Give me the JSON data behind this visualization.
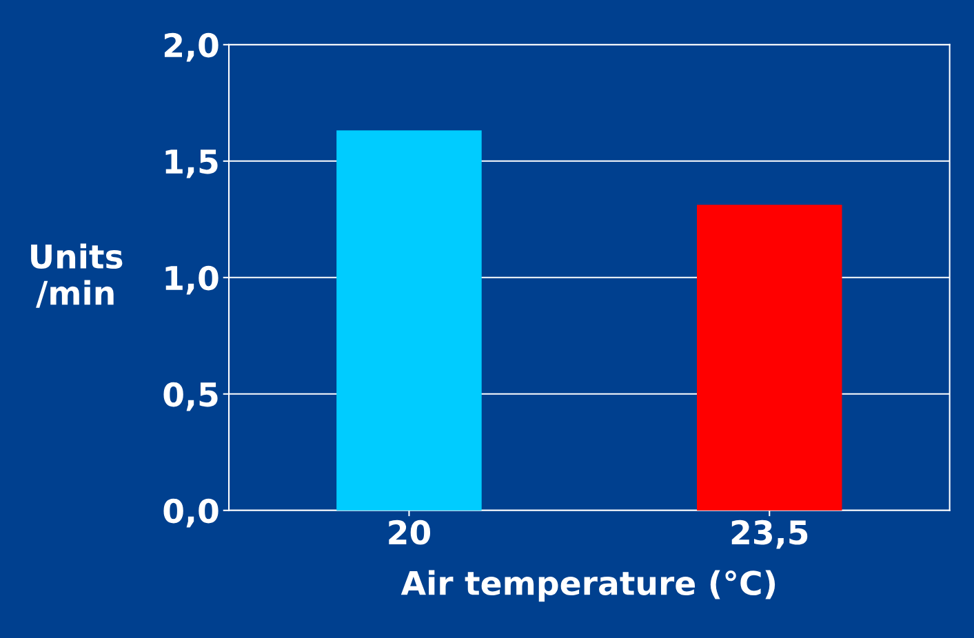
{
  "chart_data": {
    "type": "bar",
    "categories": [
      "20",
      "23,5"
    ],
    "values": [
      1.63,
      1.31
    ],
    "colors": [
      "#00ccff",
      "#ff0000"
    ],
    "xlabel": "Air temperature (°C)",
    "ylabel": "Units\n/min",
    "ylim": [
      0,
      2
    ],
    "yticks": [
      {
        "value": 0,
        "label": "0,0"
      },
      {
        "value": 0.5,
        "label": "0,5"
      },
      {
        "value": 1,
        "label": "1,0"
      },
      {
        "value": 1.5,
        "label": "1,5"
      },
      {
        "value": 2,
        "label": "2,0"
      }
    ],
    "grid": "y",
    "legend": false
  }
}
